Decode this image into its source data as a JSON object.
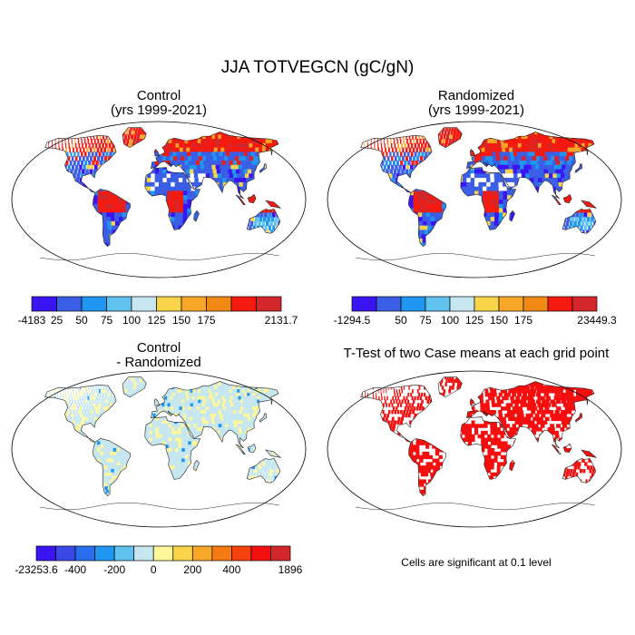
{
  "title": "JJA TOTVEGCN (gC/gN)",
  "panels": [
    {
      "id": "control",
      "title_lines": [
        "Control",
        "(yrs 1999-2021)"
      ],
      "map_type": "field",
      "colorbar": {
        "colors": [
          "#3a14f2",
          "#3a5ee6",
          "#1f96f0",
          "#5fc3ee",
          "#c6e6f0",
          "#f7d44a",
          "#f7a628",
          "#f08a14",
          "#f51a0f",
          "#d3272b"
        ],
        "labels": [
          "-4183",
          "25",
          "50",
          "75",
          "100",
          "125",
          "150",
          "175",
          "2131.7"
        ],
        "label_positions": [
          0,
          1,
          2,
          3,
          4,
          5,
          6,
          7,
          10
        ]
      }
    },
    {
      "id": "randomized",
      "title_lines": [
        "Randomized",
        "(yrs 1999-2021)"
      ],
      "map_type": "field",
      "colorbar": {
        "colors": [
          "#3a14f2",
          "#3a5ee6",
          "#1f96f0",
          "#5fc3ee",
          "#c6e6f0",
          "#f7d44a",
          "#f7a628",
          "#f08a14",
          "#f51a0f",
          "#d3272b"
        ],
        "labels": [
          "-1294.5",
          "50",
          "75",
          "100",
          "125",
          "150",
          "175",
          "23449.3"
        ],
        "label_positions": [
          0,
          2,
          3,
          4,
          5,
          6,
          7,
          10
        ]
      }
    },
    {
      "id": "difference",
      "title_lines": [
        "Control",
        "- Randomized"
      ],
      "map_type": "difference",
      "colorbar": {
        "colors": [
          "#3a14f2",
          "#3a48e6",
          "#2a6ef0",
          "#1f96f0",
          "#5fc3ee",
          "#c6e6f0",
          "#fff79a",
          "#f7d44a",
          "#f7a628",
          "#f57a14",
          "#f5420f",
          "#f50f0f",
          "#d3272b"
        ],
        "labels": [
          "-23253.6",
          "-400",
          "-200",
          "0",
          "200",
          "400",
          "1896"
        ],
        "label_positions": [
          0,
          2,
          4,
          6,
          8,
          10,
          13
        ]
      }
    },
    {
      "id": "ttest",
      "title_lines": [
        "T-Test of two Case means at each grid point"
      ],
      "map_type": "significance",
      "note": "Cells are significant at 0.1 level"
    }
  ]
}
